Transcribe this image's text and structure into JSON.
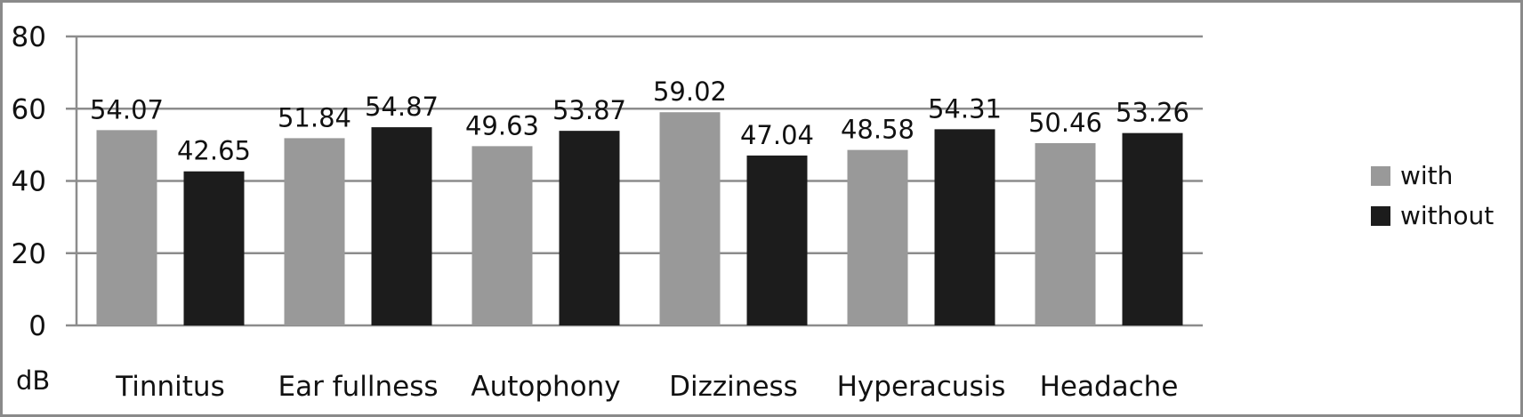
{
  "chart_data": {
    "type": "bar",
    "title": "",
    "xlabel": "",
    "ylabel": "dB",
    "ylim": [
      0,
      80
    ],
    "yticks": [
      0,
      20,
      40,
      60,
      80
    ],
    "grid": true,
    "legend_position": "right",
    "categories": [
      "Tinnitus",
      "Ear fullness",
      "Autophony",
      "Dizziness",
      "Hyperacusis",
      "Headache"
    ],
    "series": [
      {
        "name": "with",
        "color": "#999999",
        "values": [
          54.07,
          51.84,
          49.63,
          59.02,
          48.58,
          50.46
        ]
      },
      {
        "name": "without",
        "color": "#1c1c1c",
        "values": [
          42.65,
          54.87,
          53.87,
          47.04,
          54.31,
          53.26
        ]
      }
    ]
  }
}
